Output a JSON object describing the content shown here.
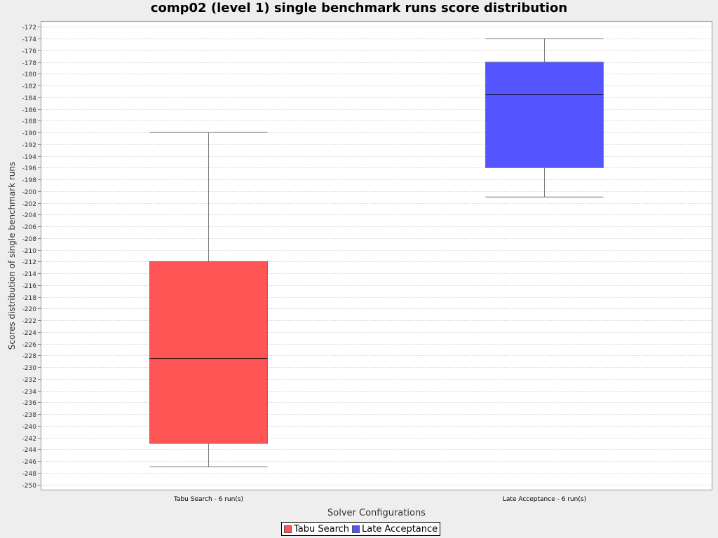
{
  "chart_data": {
    "type": "boxplot",
    "title": "comp02 (level 1) single benchmark runs score distribution",
    "xlabel": "Solver Configurations",
    "ylabel": "Scores distribution of single benchmark runs",
    "ylim": [
      -251,
      -171
    ],
    "yticks": [
      -172,
      -174,
      -176,
      -178,
      -180,
      -182,
      -184,
      -186,
      -188,
      -190,
      -192,
      -194,
      -196,
      -198,
      -200,
      -202,
      -204,
      -206,
      -208,
      -210,
      -212,
      -214,
      -216,
      -218,
      -220,
      -222,
      -224,
      -226,
      -228,
      -230,
      -232,
      -234,
      -236,
      -238,
      -240,
      -242,
      -244,
      -246,
      -248,
      -250
    ],
    "grid": true,
    "legend_position": "bottom",
    "categories": [
      "Tabu Search - 6 run(s)",
      "Late Acceptance - 6 run(s)"
    ],
    "series": [
      {
        "name": "Tabu Search",
        "color": "#ff5555",
        "min": -247,
        "q1": -243,
        "median": -228.5,
        "q3": -212,
        "max": -190
      },
      {
        "name": "Late Acceptance",
        "color": "#5555ff",
        "min": -201,
        "q1": -196,
        "median": -183.5,
        "q3": -178,
        "max": -174
      }
    ]
  }
}
